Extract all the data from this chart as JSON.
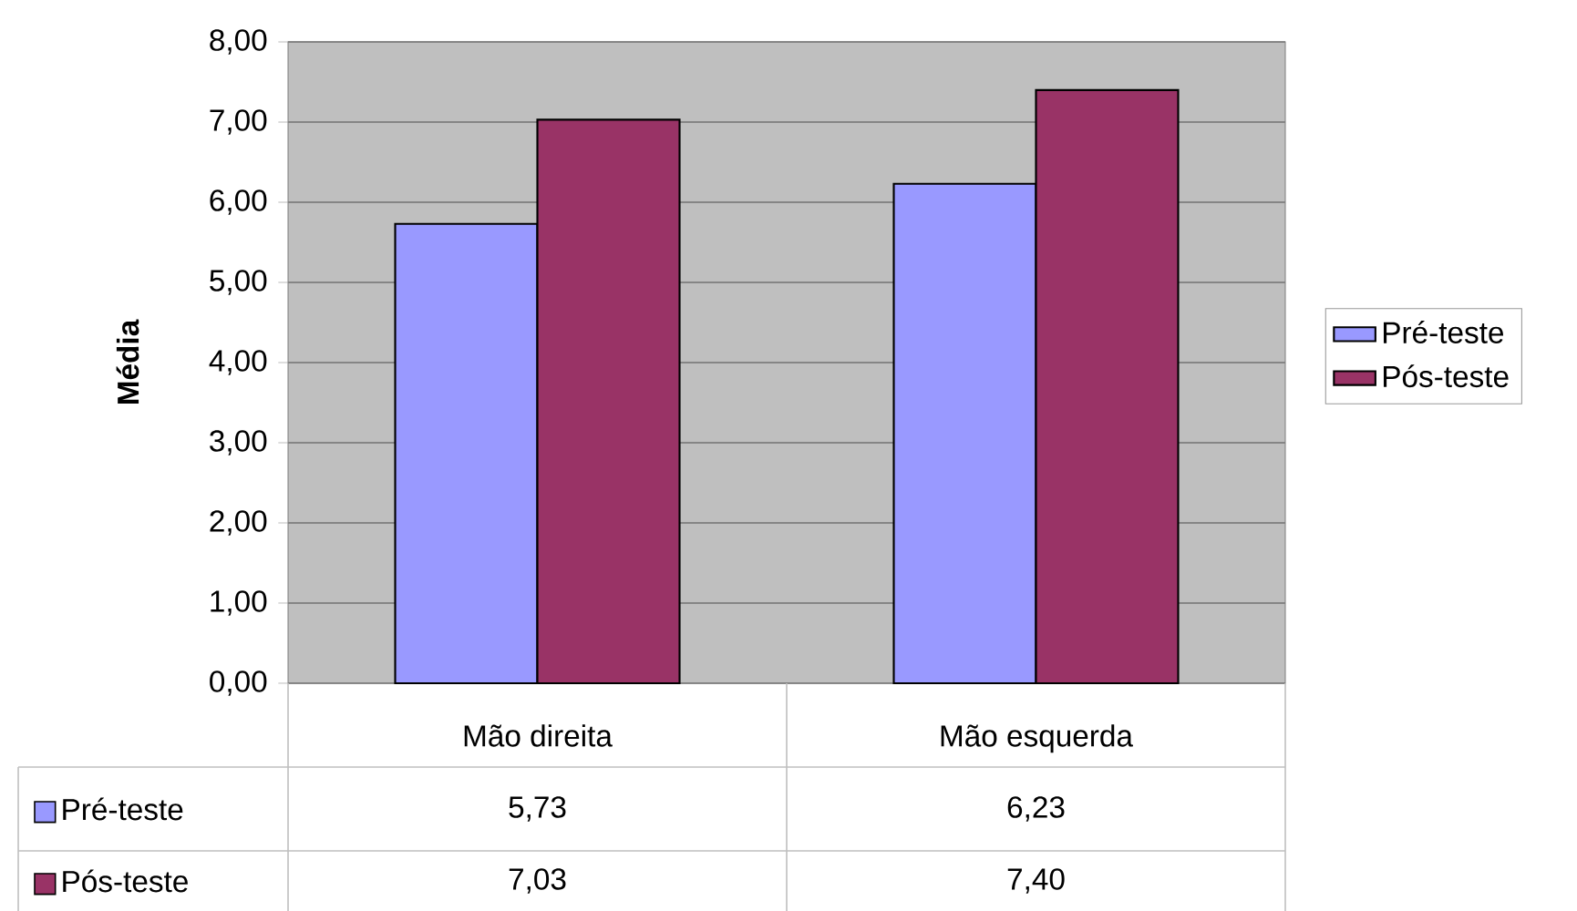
{
  "chart_data": {
    "type": "bar",
    "ylabel": "Média",
    "categories": [
      "Mão direita",
      "Mão esquerda"
    ],
    "series": [
      {
        "name": "Pré-teste",
        "color": "#9999ff",
        "values": [
          5.73,
          6.23
        ],
        "value_labels": [
          "5,73",
          "6,23"
        ]
      },
      {
        "name": "Pós-teste",
        "color": "#993366",
        "values": [
          7.03,
          7.4
        ],
        "value_labels": [
          "7,03",
          "7,40"
        ]
      }
    ],
    "ylim": [
      0,
      8
    ],
    "yticks": [
      {
        "value": 0,
        "label": "0,00"
      },
      {
        "value": 1,
        "label": "1,00"
      },
      {
        "value": 2,
        "label": "2,00"
      },
      {
        "value": 3,
        "label": "3,00"
      },
      {
        "value": 4,
        "label": "4,00"
      },
      {
        "value": 5,
        "label": "5,00"
      },
      {
        "value": 6,
        "label": "6,00"
      },
      {
        "value": 7,
        "label": "7,00"
      },
      {
        "value": 8,
        "label": "8,00"
      }
    ],
    "grid": "y",
    "legend": "right"
  }
}
